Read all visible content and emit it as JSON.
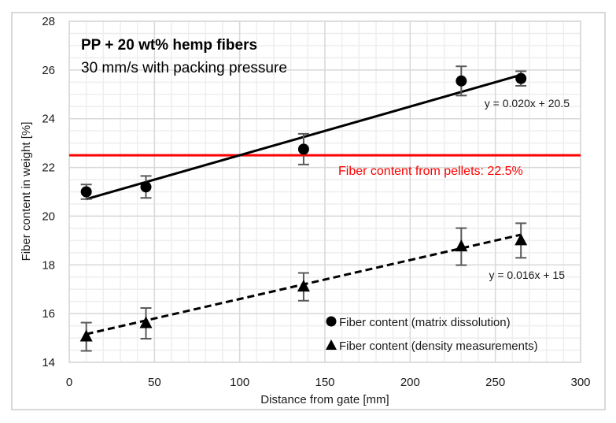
{
  "chart_data": {
    "type": "scatter",
    "title": "PP + 20 wt% hemp fibers",
    "subtitle": "30 mm/s with packing pressure",
    "xlabel": "Distance from gate [mm]",
    "ylabel": "Fiber content in weight [%]",
    "xlim": [
      0,
      300
    ],
    "ylim": [
      14,
      28
    ],
    "x_ticks": [
      0,
      50,
      100,
      150,
      200,
      250,
      300
    ],
    "y_ticks": [
      14,
      16,
      18,
      20,
      22,
      24,
      26,
      28
    ],
    "grid": {
      "major": true,
      "minor": true,
      "x_minor_step": 10,
      "y_minor_step": 0.5
    },
    "legend_position": "lower right (inside plot)",
    "series": [
      {
        "name": "Fiber content (matrix dissolution)",
        "marker": "circle",
        "color": "#000000",
        "x": [
          10,
          45,
          137.5,
          230,
          265
        ],
        "y": [
          21.0,
          21.2,
          22.75,
          25.55,
          25.65
        ],
        "error": [
          0.3,
          0.45,
          0.63,
          0.6,
          0.3
        ],
        "trendline": {
          "type": "linear",
          "style": "solid",
          "equation": "y = 0.020x + 20.5",
          "slope": 0.02,
          "intercept": 20.5,
          "x_range": [
            10,
            265
          ]
        }
      },
      {
        "name": "Fiber content (density measurements)",
        "marker": "triangle",
        "color": "#000000",
        "x": [
          10,
          45,
          137.5,
          230,
          265
        ],
        "y": [
          15.05,
          15.6,
          17.1,
          18.75,
          19.0
        ],
        "error": [
          0.58,
          0.63,
          0.57,
          0.76,
          0.71
        ],
        "trendline": {
          "type": "linear",
          "style": "dashed",
          "equation": "y = 0.016x + 15",
          "slope": 0.016,
          "intercept": 15,
          "x_range": [
            10,
            265
          ]
        }
      }
    ],
    "reference_lines": [
      {
        "orientation": "horizontal",
        "y": 22.5,
        "color": "#ff0000",
        "label": "Fiber content from pellets: 22.5%"
      }
    ]
  },
  "colors": {
    "frame": "#d9d9d9",
    "grid_major": "#d9d9d9",
    "grid_minor": "#eeeeee",
    "reference": "#ff0000",
    "error_bar": "#595959",
    "marker": "#000000"
  }
}
